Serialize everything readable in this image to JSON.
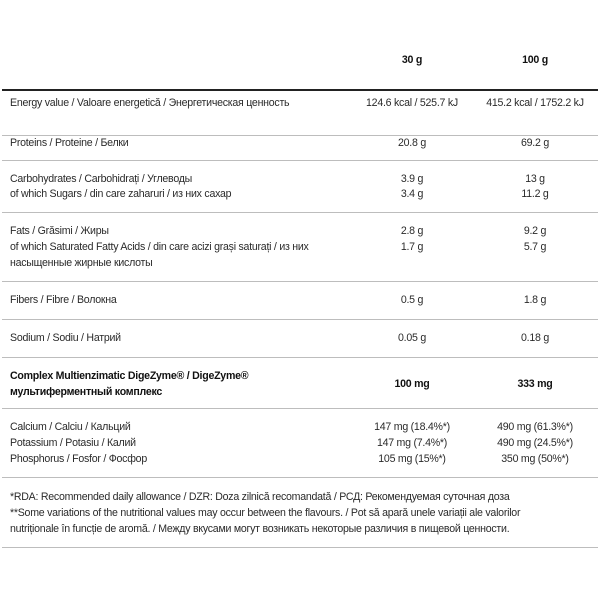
{
  "header": {
    "col1": "30 g",
    "col2": "100 g"
  },
  "rows": {
    "energy": {
      "label": "Energy value / Valoare energetică / Энергетическая ценность",
      "v1": "124.6 kcal / 525.7 kJ",
      "v2": "415.2 kcal / 1752.2 kJ"
    },
    "proteins": {
      "label": "Proteins / Proteine / Белки",
      "v1": "20.8 g",
      "v2": "69.2 g"
    },
    "carbs": {
      "label": "Carbohydrates / Carbohidrați / Углеводы",
      "v1": "3.9 g",
      "v2": "13 g"
    },
    "sugars": {
      "label": "of which Sugars / din care zaharuri / из них сахар",
      "v1": "3.4 g",
      "v2": "11.2 g"
    },
    "fats": {
      "label": "Fats / Grăsimi / Жиры",
      "v1": "2.8 g",
      "v2": "9.2 g"
    },
    "saturated": {
      "label1": "of which Saturated Fatty Acids / din care acizi grași saturați / из них",
      "label2": "насыщенные жирные кислоты",
      "v1": "1.7 g",
      "v2": "5.7 g"
    },
    "fibers": {
      "label": "Fibers / Fibre / Волокна",
      "v1": "0.5 g",
      "v2": "1.8 g"
    },
    "sodium": {
      "label": "Sodium / Sodiu / Натрий",
      "v1": "0.05 g",
      "v2": "0.18 g"
    },
    "complex": {
      "label1": "Complex Multienzimatic DigeZyme® / DigeZyme®",
      "label2": "мультиферментный комплекс",
      "v1": "100 mg",
      "v2": "333 mg"
    },
    "calcium": {
      "label": "Calcium / Calciu / Кальций",
      "v1": "147 mg (18.4%*)",
      "v2": "490 mg (61.3%*)"
    },
    "potassium": {
      "label": "Potassium / Potasiu / Калий",
      "v1": "147 mg (7.4%*)",
      "v2": "490 mg (24.5%*)"
    },
    "phosphorus": {
      "label": "Phosphorus / Fosfor / Фосфор",
      "v1": "105 mg (15%*)",
      "v2": "350 mg (50%*)"
    }
  },
  "footnotes": {
    "rda": "*RDA: Recommended daily allowance / DZR: Doza zilnică recomandată / РСД: Рекомендуемая суточная доза",
    "variations1": "**Some variations of the nutritional values may occur between the flavours. / Pot să apară unele variații ale valorilor",
    "variations2": "nutriționale în funcție de aromă. / Между вкусами могут возникать некоторые различия в пищевой ценности."
  }
}
